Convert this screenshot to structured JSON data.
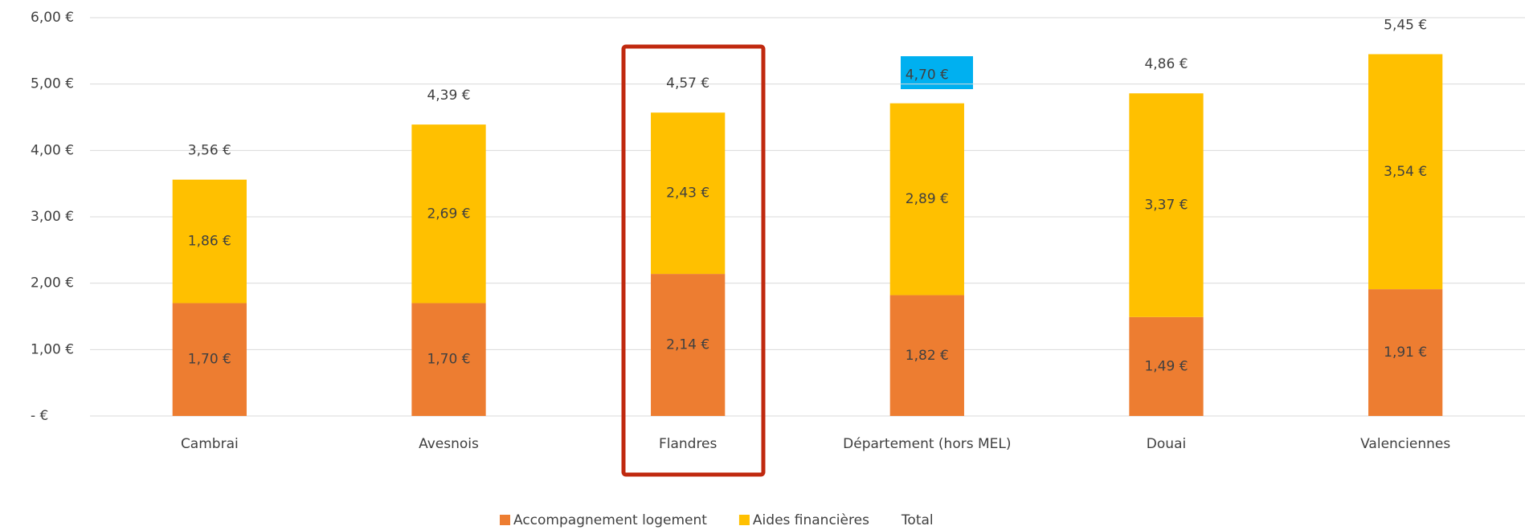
{
  "chart_data": {
    "type": "bar",
    "stacked": true,
    "categories": [
      "Cambrai",
      "Avesnois",
      "Flandres",
      "Département (hors MEL)",
      "Douai",
      "Valenciennes"
    ],
    "series": [
      {
        "name": "Accompagnement logement",
        "color": "#ED7D31",
        "values": [
          1.7,
          1.7,
          2.14,
          1.82,
          1.49,
          1.91
        ],
        "value_labels": [
          "1,70 €",
          "1,70 €",
          "2,14 €",
          "1,82 €",
          "1,49 €",
          "1,91 €"
        ]
      },
      {
        "name": "Aides financières",
        "color": "#FFC000",
        "values": [
          1.86,
          2.69,
          2.43,
          2.89,
          3.37,
          3.54
        ],
        "value_labels": [
          "1,86 €",
          "2,69 €",
          "2,43 €",
          "2,89 €",
          "3,37 €",
          "3,54 €"
        ]
      },
      {
        "name": "Total",
        "values": [
          3.56,
          4.39,
          4.57,
          4.7,
          4.86,
          5.45
        ],
        "value_labels": [
          "3,56 €",
          "4,39 €",
          "4,57 €",
          "4,70 €",
          "4,86 €",
          "5,45 €"
        ]
      }
    ],
    "ylim": [
      0,
      6
    ],
    "yticks": [
      {
        "value": 0,
        "label": "-  €"
      },
      {
        "value": 1,
        "label": "1,00 €"
      },
      {
        "value": 2,
        "label": "2,00 €"
      },
      {
        "value": 3,
        "label": "3,00 €"
      },
      {
        "value": 4,
        "label": "4,00 €"
      },
      {
        "value": 5,
        "label": "5,00 €"
      },
      {
        "value": 6,
        "label": "6,00 €"
      }
    ],
    "grid": true,
    "legend": "bottom"
  }
}
